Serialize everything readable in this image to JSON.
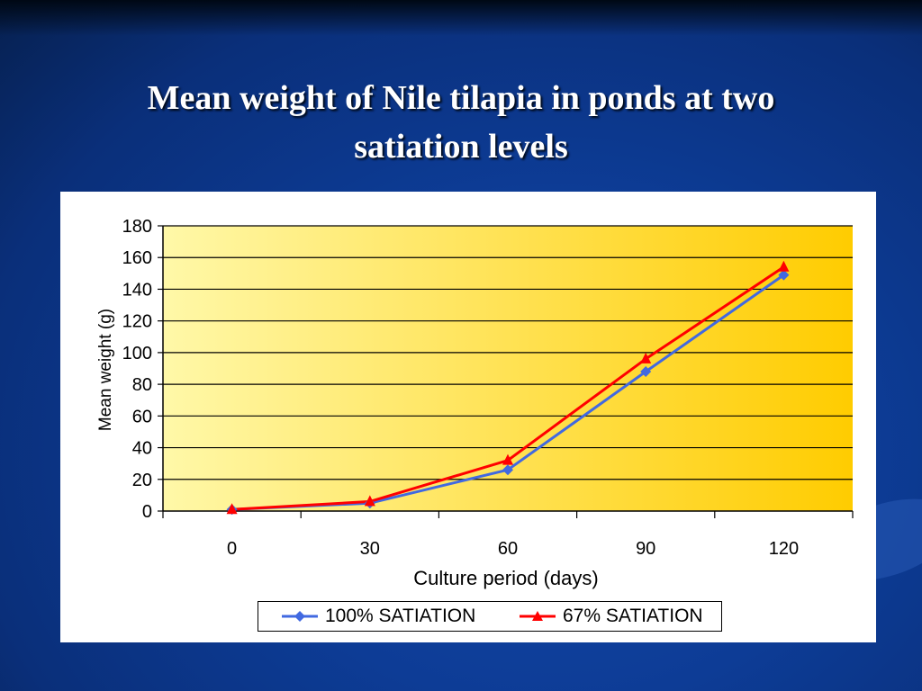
{
  "slide": {
    "title_line1": "Mean weight of Nile tilapia in ponds at two",
    "title_line2": "satiation levels"
  },
  "colors": {
    "series1": "#4169e1",
    "series2": "#ff0000",
    "plot_gradient_start": "#fff8a8",
    "plot_gradient_end": "#ffcc00"
  },
  "chart_data": {
    "type": "line",
    "xlabel": "Culture period (days)",
    "ylabel": "Mean weight (g)",
    "x_ticks": [
      "0",
      "30",
      "60",
      "90",
      "120"
    ],
    "y_ticks": [
      "0",
      "20",
      "40",
      "60",
      "80",
      "100",
      "120",
      "140",
      "160",
      "180"
    ],
    "xlim": [
      -15,
      135
    ],
    "ylim": [
      0,
      180
    ],
    "grid": true,
    "legend_position": "bottom",
    "series": [
      {
        "name": "100% SATIATION",
        "color": "#4169e1",
        "marker": "diamond",
        "x": [
          0,
          30,
          60,
          90,
          120
        ],
        "y": [
          1,
          5,
          26,
          88,
          149
        ]
      },
      {
        "name": "67% SATIATION",
        "color": "#ff0000",
        "marker": "triangle",
        "x": [
          0,
          30,
          60,
          90,
          120
        ],
        "y": [
          1,
          6,
          32,
          96,
          154
        ]
      }
    ]
  }
}
